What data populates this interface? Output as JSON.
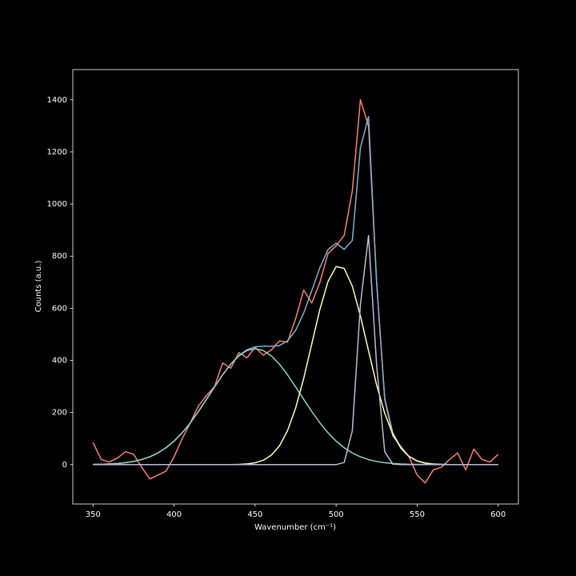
{
  "chart_data": {
    "type": "line",
    "xlabel": "Wavenumber (cm⁻¹)",
    "ylabel": "Counts (a.u.)",
    "x": [
      350,
      355,
      360,
      365,
      370,
      375,
      380,
      385,
      390,
      395,
      400,
      405,
      410,
      415,
      420,
      425,
      430,
      435,
      440,
      445,
      450,
      455,
      460,
      465,
      470,
      475,
      480,
      485,
      490,
      495,
      500,
      505,
      510,
      515,
      520,
      525,
      530,
      535,
      540,
      545,
      550,
      555,
      560,
      565,
      570,
      575,
      580,
      585,
      590,
      595,
      600
    ],
    "series": [
      {
        "color": "#fa8174",
        "values": [
          85,
          20,
          10,
          25,
          50,
          40,
          -10,
          -55,
          -40,
          -25,
          30,
          100,
          160,
          225,
          265,
          300,
          390,
          370,
          430,
          410,
          450,
          420,
          440,
          475,
          470,
          560,
          670,
          620,
          700,
          810,
          840,
          880,
          1050,
          1400,
          1300,
          700,
          250,
          110,
          70,
          30,
          -40,
          -70,
          -20,
          -10,
          20,
          45,
          -20,
          60,
          20,
          10,
          40
        ]
      },
      {
        "color": "#81b0d2",
        "values": [
          1,
          1,
          3,
          4,
          8,
          12,
          20,
          30,
          45,
          65,
          90,
          122,
          160,
          204,
          251,
          299,
          345,
          386,
          419,
          441,
          452,
          455,
          454,
          457,
          475,
          515,
          582,
          668,
          756,
          825,
          850,
          826,
          860,
          1216,
          1336,
          700,
          255,
          122,
          66,
          32,
          15,
          6,
          2,
          1,
          0,
          0,
          0,
          0,
          0,
          0,
          0
        ]
      },
      {
        "color": "#8dd3c7",
        "values": [
          0.8,
          1.4,
          2.5,
          4.4,
          7.5,
          12.3,
          19.5,
          30.1,
          44.6,
          64.5,
          90.4,
          122.4,
          160.3,
          203.8,
          250.6,
          298.6,
          344.8,
          385.5,
          417.5,
          438,
          445,
          438,
          417.5,
          385.5,
          344.8,
          298.6,
          250.6,
          203.8,
          160.3,
          122.4,
          90.4,
          64.5,
          44.6,
          30.1,
          19.5,
          12.3,
          7.5,
          4.4,
          2.5,
          1.4,
          0.8,
          0.4,
          0.2,
          0.1,
          0,
          0,
          0,
          0,
          0,
          0,
          0
        ]
      },
      {
        "color": "#feffb3",
        "values": [
          0,
          0,
          0,
          0,
          0,
          0,
          0,
          0,
          0,
          0,
          0,
          0,
          0,
          0,
          0,
          0,
          0,
          0.3,
          1,
          2.8,
          7.1,
          16.8,
          36.2,
          71.6,
          130.4,
          216.7,
          331,
          464,
          596,
          703,
          760,
          753,
          685,
          571,
          437,
          306,
          197,
          116,
          63,
          31,
          14,
          5.9,
          2.3,
          0.8,
          0,
          0,
          0,
          0,
          0,
          0,
          0
        ]
      },
      {
        "color": "#bfbbd9",
        "values": [
          0,
          0,
          0,
          0,
          0,
          0,
          0,
          0,
          0,
          0,
          0,
          0,
          0,
          0,
          0,
          0,
          0,
          0,
          0,
          0,
          0,
          0,
          0,
          0,
          0,
          0,
          0,
          0,
          0,
          0,
          0,
          8.5,
          130,
          615,
          879,
          382,
          50,
          2,
          0,
          0,
          0,
          0,
          0,
          0,
          0,
          0,
          0,
          0,
          0,
          0,
          0
        ]
      }
    ],
    "xlim": [
      337.5,
      612.5
    ],
    "xticks": [
      350,
      400,
      450,
      500,
      550,
      600
    ],
    "ylim": [
      -151,
      1516
    ],
    "yticks": [
      0,
      200,
      400,
      600,
      800,
      1000,
      1200,
      1400
    ]
  }
}
